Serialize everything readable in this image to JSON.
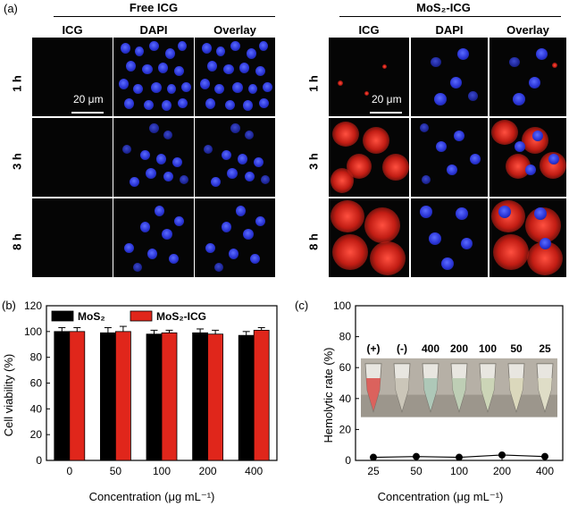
{
  "panel_a": {
    "label": "(a)",
    "group_left": "Free ICG",
    "group_right": "MoS₂-ICG",
    "columns": [
      "ICG",
      "DAPI",
      "Overlay"
    ],
    "rows": [
      "1 h",
      "3 h",
      "8 h"
    ],
    "scale_bar": "20 μm"
  },
  "panel_b": {
    "label": "(b)"
  },
  "panel_c": {
    "label": "(c)"
  },
  "chart_data": [
    {
      "type": "bar",
      "panel": "(b)",
      "categories": [
        "0",
        "50",
        "100",
        "200",
        "400"
      ],
      "series": [
        {
          "name": "MoS₂",
          "color": "#000000",
          "values": [
            100,
            99,
            98,
            99,
            97
          ],
          "errors": [
            3,
            4,
            3,
            3,
            3
          ]
        },
        {
          "name": "MoS₂-ICG",
          "color": "#e0261b",
          "values": [
            100,
            100,
            99,
            98,
            101
          ],
          "errors": [
            3,
            4,
            2,
            3,
            2
          ]
        }
      ],
      "xlabel": "Concentration (μg mL⁻¹)",
      "ylabel": "Cell viability (%)",
      "ylim": [
        0,
        120
      ],
      "yticks": [
        0,
        20,
        40,
        60,
        80,
        100,
        120
      ],
      "legend_position": "top"
    },
    {
      "type": "line",
      "panel": "(c)",
      "x": [
        "25",
        "50",
        "100",
        "200",
        "400"
      ],
      "y": [
        2,
        2.5,
        2,
        3.5,
        2.5
      ],
      "xlabel": "Concentration (μg mL⁻¹)",
      "ylabel": "Hemolytic rate (%)",
      "ylim": [
        0,
        100
      ],
      "yticks": [
        0,
        20,
        40,
        60,
        80,
        100
      ],
      "inset_labels": [
        "(+)",
        "(-)",
        "400",
        "200",
        "100",
        "50",
        "25"
      ]
    }
  ]
}
